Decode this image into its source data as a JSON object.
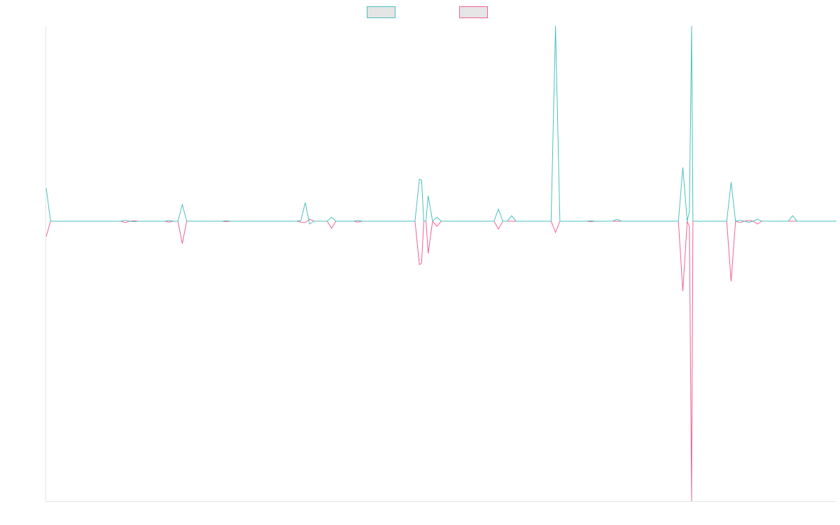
{
  "chart_data": {
    "type": "line",
    "title": "",
    "xlabel": "",
    "ylabel": "",
    "grid": false,
    "legend": {
      "placement": "top-center",
      "entries": [
        {
          "name": "",
          "color": "#4bc0c0",
          "fill": "#e5e5e5"
        },
        {
          "name": "",
          "color": "#f06292",
          "fill": "#e5e5e5"
        }
      ]
    },
    "x_count": 181,
    "ylim": [
      -1,
      1
    ],
    "series": [
      {
        "name": "",
        "color": "#4bc0c0",
        "points": [
          [
            0,
            0.17
          ],
          [
            1,
            0
          ],
          [
            17,
            0
          ],
          [
            18,
            0.005
          ],
          [
            19,
            0
          ],
          [
            20,
            -0.002
          ],
          [
            21,
            0
          ],
          [
            27,
            0
          ],
          [
            28,
            0.003
          ],
          [
            29,
            0
          ],
          [
            30,
            0
          ],
          [
            31,
            0.085
          ],
          [
            32,
            0
          ],
          [
            40,
            0
          ],
          [
            41,
            0.002
          ],
          [
            42,
            0
          ],
          [
            57,
            0
          ],
          [
            58,
            0.003
          ],
          [
            59,
            0.095
          ],
          [
            60,
            -0.01
          ],
          [
            61,
            0
          ],
          [
            64,
            0
          ],
          [
            65,
            0.02
          ],
          [
            66,
            0
          ],
          [
            70,
            0
          ],
          [
            71,
            0.003
          ],
          [
            72,
            0
          ],
          [
            84,
            0
          ],
          [
            85,
            0.215
          ],
          [
            85.5,
            0.21
          ],
          [
            86,
            0
          ],
          [
            86.5,
            0
          ],
          [
            87,
            0.13
          ],
          [
            88,
            0
          ],
          [
            89,
            0.02
          ],
          [
            90,
            0
          ],
          [
            102,
            0
          ],
          [
            103,
            0.062
          ],
          [
            104,
            0
          ],
          [
            105,
            0
          ],
          [
            106,
            0.028
          ],
          [
            107,
            0
          ],
          [
            115,
            0
          ],
          [
            116,
            1.0
          ],
          [
            117,
            0
          ],
          [
            123,
            0
          ],
          [
            124,
            0.002
          ],
          [
            125,
            0
          ],
          [
            129,
            0
          ],
          [
            130,
            0.01
          ],
          [
            131,
            0
          ],
          [
            144,
            0
          ],
          [
            145,
            0.275
          ],
          [
            146,
            0
          ],
          [
            146.5,
            0.05
          ],
          [
            147,
            1.0
          ],
          [
            147.3,
            0
          ],
          [
            155,
            0
          ],
          [
            156,
            0.2
          ],
          [
            157,
            0
          ],
          [
            158,
            0.005
          ],
          [
            159,
            0
          ],
          [
            160,
            -0.004
          ],
          [
            161,
            0
          ],
          [
            162,
            0.01
          ],
          [
            163,
            0
          ],
          [
            169,
            0
          ],
          [
            170,
            0.028
          ],
          [
            171,
            0
          ],
          [
            180,
            0
          ]
        ]
      },
      {
        "name": "",
        "color": "#f06292",
        "points": [
          [
            0,
            -0.055
          ],
          [
            1,
            0
          ],
          [
            17,
            0
          ],
          [
            18,
            -0.005
          ],
          [
            19,
            0
          ],
          [
            20,
            0.002
          ],
          [
            21,
            0
          ],
          [
            27,
            0
          ],
          [
            28,
            -0.003
          ],
          [
            29,
            0
          ],
          [
            30,
            0
          ],
          [
            31,
            -0.08
          ],
          [
            32,
            0
          ],
          [
            40,
            0
          ],
          [
            41,
            -0.002
          ],
          [
            42,
            0
          ],
          [
            57,
            0
          ],
          [
            58,
            -0.003
          ],
          [
            59,
            -0.005
          ],
          [
            60,
            0.01
          ],
          [
            61,
            0
          ],
          [
            64,
            0
          ],
          [
            65,
            -0.025
          ],
          [
            66,
            0
          ],
          [
            70,
            0
          ],
          [
            71,
            -0.003
          ],
          [
            72,
            0
          ],
          [
            84,
            0
          ],
          [
            85,
            -0.155
          ],
          [
            85.5,
            -0.15
          ],
          [
            86,
            0
          ],
          [
            86.5,
            0
          ],
          [
            87,
            -0.115
          ],
          [
            88,
            0
          ],
          [
            89,
            -0.018
          ],
          [
            90,
            0
          ],
          [
            102,
            0
          ],
          [
            103,
            -0.028
          ],
          [
            104,
            0
          ],
          [
            105,
            0
          ],
          [
            106,
            0
          ],
          [
            107,
            0
          ],
          [
            115,
            0
          ],
          [
            116,
            -0.04
          ],
          [
            117,
            0
          ],
          [
            123,
            0
          ],
          [
            124,
            -0.002
          ],
          [
            125,
            0
          ],
          [
            129,
            0
          ],
          [
            130,
            0
          ],
          [
            131,
            0
          ],
          [
            144,
            0
          ],
          [
            145,
            -0.25
          ],
          [
            146,
            0
          ],
          [
            146.5,
            -0.02
          ],
          [
            147,
            -1.0
          ],
          [
            147.3,
            0
          ],
          [
            155,
            0
          ],
          [
            156,
            -0.215
          ],
          [
            157,
            0
          ],
          [
            158,
            -0.005
          ],
          [
            159,
            0
          ],
          [
            160,
            0.004
          ],
          [
            161,
            0
          ],
          [
            162,
            -0.01
          ],
          [
            163,
            0
          ],
          [
            169,
            0
          ],
          [
            170,
            0
          ],
          [
            171,
            0
          ],
          [
            180,
            0
          ]
        ]
      }
    ]
  }
}
